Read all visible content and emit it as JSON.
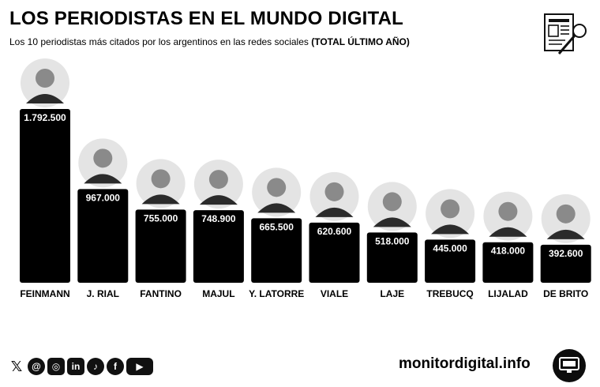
{
  "header": {
    "title": "LOS PERIODISTAS EN EL MUNDO DIGITAL",
    "subtitle_prefix": "Los 10 periodistas más citados por los argentinos en las redes sociales",
    "subtitle_bold": "(TOTAL ÚLTIMO AÑO)"
  },
  "chart_data": {
    "type": "bar",
    "categories": [
      "FEINMANN",
      "J. RIAL",
      "FANTINO",
      "MAJUL",
      "Y. LATORRE",
      "VIALE",
      "LAJE",
      "TREBUCQ",
      "LIJALAD",
      "DE BRITO"
    ],
    "values": [
      1792500,
      967000,
      755000,
      748900,
      665500,
      620600,
      518000,
      445000,
      418000,
      392600
    ],
    "value_labels": [
      "1.792.500",
      "967.000",
      "755.000",
      "748.900",
      "665.500",
      "620.600",
      "518.000",
      "445.000",
      "418.000",
      "392.600"
    ],
    "title": "LOS PERIODISTAS EN EL MUNDO DIGITAL",
    "xlabel": "",
    "ylabel": "",
    "grid": false,
    "colors": {
      "bar": "#000000",
      "label": "#ffffff",
      "avatar": "#8a8a8a"
    }
  },
  "footer": {
    "social_icons": [
      "x-icon",
      "threads-icon",
      "instagram-icon",
      "linkedin-icon",
      "tiktok-icon",
      "facebook-icon",
      "youtube-icon"
    ],
    "social_glyphs": [
      "𝕏",
      "@",
      "◎",
      "in",
      "♪",
      "f",
      "▶"
    ],
    "site": "monitordigital.info"
  }
}
